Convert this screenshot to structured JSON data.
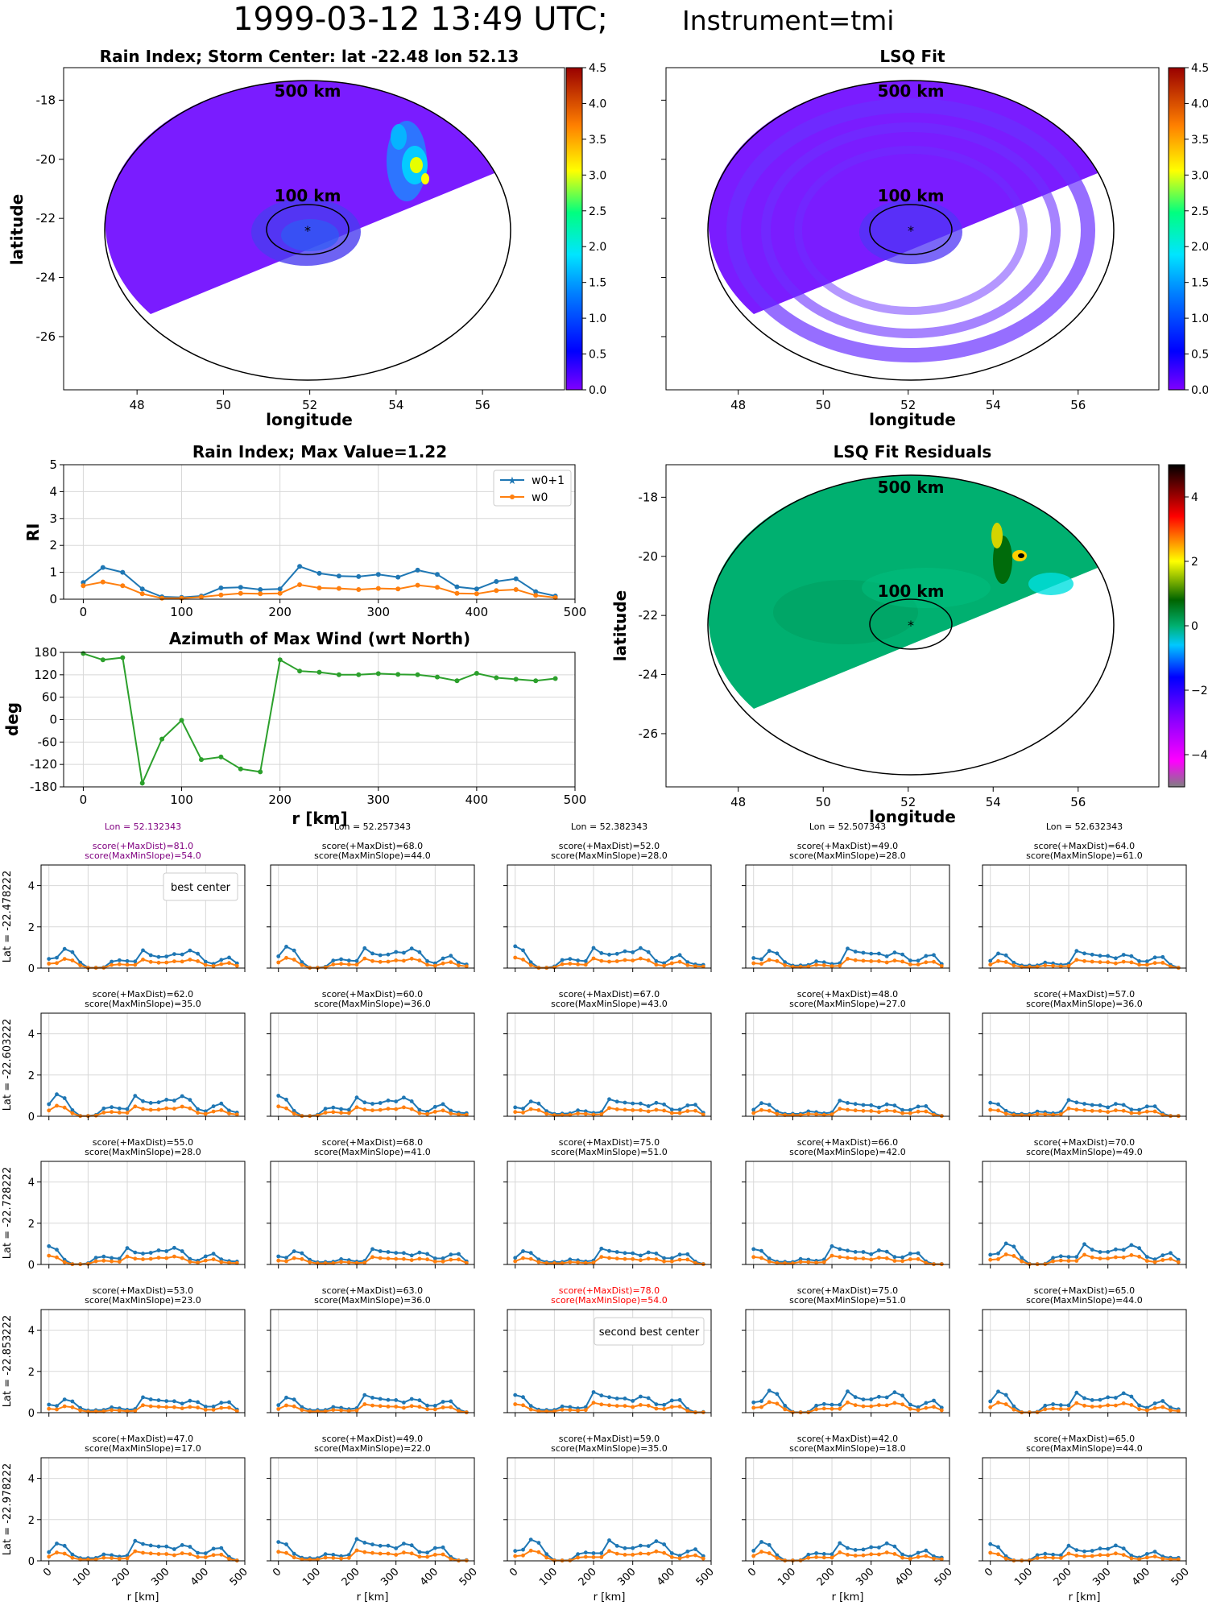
{
  "figure": {
    "title_main": "1999-03-12 13:49 UTC;",
    "title_instrument": "Instrument=tmi"
  },
  "chart_data": [
    {
      "type": "heatmap",
      "title": "Rain Index; Storm Center: lat -22.48 lon 52.13",
      "xlabel": "longitude",
      "ylabel": "latitude",
      "xlim": [
        46.3,
        57.9
      ],
      "ylim": [
        -27.8,
        -16.9
      ],
      "xticks": [
        "48",
        "50",
        "52",
        "54",
        "56"
      ],
      "yticks": [
        "-18",
        "-20",
        "-22",
        "-24",
        "-26"
      ],
      "ring_labels": [
        "500 km",
        "100 km"
      ],
      "storm_center": {
        "lon": 52.13,
        "lat": -22.48
      },
      "colorbar": {
        "min": 0,
        "max": 4.5,
        "ticks": [
          "0.0",
          "0.5",
          "1.0",
          "1.5",
          "2.0",
          "2.5",
          "3.0",
          "3.5",
          "4.0",
          "4.5"
        ],
        "colormap": "jet-like"
      }
    },
    {
      "type": "heatmap",
      "title": "LSQ Fit",
      "xlabel": "longitude",
      "xlim": [
        46.3,
        57.9
      ],
      "ylim": [
        -27.8,
        -16.9
      ],
      "xticks": [
        "48",
        "50",
        "52",
        "54",
        "56"
      ],
      "ring_labels": [
        "500 km",
        "100 km"
      ],
      "colorbar": {
        "min": 0,
        "max": 4.5,
        "ticks": [
          "0.0",
          "0.5",
          "1.0",
          "1.5",
          "2.0",
          "2.5",
          "3.0",
          "3.5",
          "4.0",
          "4.5"
        ]
      }
    },
    {
      "type": "line",
      "title": "Rain Index; Max Value=1.22",
      "ylabel": "RI",
      "xlim": [
        -20,
        500
      ],
      "ylim": [
        0,
        5
      ],
      "xticks": [
        "0",
        "100",
        "200",
        "300",
        "400",
        "500"
      ],
      "yticks": [
        "0",
        "1",
        "2",
        "3",
        "4",
        "5"
      ],
      "x": [
        0,
        20,
        40,
        60,
        80,
        100,
        120,
        140,
        160,
        180,
        200,
        220,
        240,
        260,
        280,
        300,
        320,
        340,
        360,
        380,
        400,
        420,
        440,
        460,
        480
      ],
      "series": [
        {
          "name": "w0+1",
          "color": "#1f77b4",
          "marker": "star",
          "values": [
            0.62,
            1.18,
            1.0,
            0.38,
            0.09,
            0.07,
            0.12,
            0.42,
            0.44,
            0.36,
            0.38,
            1.22,
            0.96,
            0.86,
            0.84,
            0.92,
            0.82,
            1.08,
            0.92,
            0.46,
            0.38,
            0.66,
            0.76,
            0.28,
            0.12
          ]
        },
        {
          "name": "w0",
          "color": "#ff7f0e",
          "marker": "dot",
          "values": [
            0.5,
            0.64,
            0.5,
            0.2,
            0.04,
            0.04,
            0.08,
            0.16,
            0.22,
            0.2,
            0.22,
            0.54,
            0.42,
            0.4,
            0.36,
            0.4,
            0.38,
            0.52,
            0.44,
            0.22,
            0.2,
            0.32,
            0.36,
            0.14,
            0.06
          ]
        }
      ]
    },
    {
      "type": "line",
      "title": "Azimuth of Max Wind (wrt North)",
      "xlabel": "r [km]",
      "ylabel": "deg",
      "xlim": [
        -20,
        500
      ],
      "ylim": [
        -180,
        180
      ],
      "xticks": [
        "0",
        "100",
        "200",
        "300",
        "400",
        "500"
      ],
      "yticks": [
        "180",
        "120",
        "60",
        "0",
        "-60",
        "-120",
        "-180"
      ],
      "x": [
        0,
        20,
        40,
        60,
        80,
        100,
        120,
        140,
        160,
        180,
        200,
        220,
        240,
        260,
        280,
        300,
        320,
        340,
        360,
        380,
        400,
        420,
        440,
        460,
        480
      ],
      "series": [
        {
          "color": "#2ca02c",
          "values": [
            177,
            160,
            166,
            -170,
            -52,
            -2,
            -107,
            -100,
            -132,
            -140,
            160,
            130,
            127,
            120,
            120,
            123,
            121,
            120,
            114,
            104,
            124,
            112,
            108,
            104,
            110
          ]
        }
      ]
    },
    {
      "type": "heatmap",
      "title": "LSQ Fit Residuals",
      "xlabel": "longitude",
      "ylabel": "latitude",
      "xlim": [
        46.3,
        57.9
      ],
      "ylim": [
        -27.8,
        -16.9
      ],
      "xticks": [
        "48",
        "50",
        "52",
        "54",
        "56"
      ],
      "yticks": [
        "-18",
        "-20",
        "-22",
        "-24",
        "-26"
      ],
      "ring_labels": [
        "500 km",
        "100 km"
      ],
      "colorbar": {
        "min": -5,
        "max": 5,
        "ticks": [
          "4",
          "2",
          "0",
          "−2",
          "−4"
        ]
      }
    },
    {
      "type": "line",
      "grid_title": "candidate center scan",
      "xlabel": "r [km]",
      "ylim": [
        0,
        5
      ],
      "xlim": [
        -20,
        500
      ],
      "xticks": [
        "0",
        "100",
        "200",
        "300",
        "400",
        "500"
      ],
      "yticks": [
        "0",
        "2",
        "4"
      ],
      "cols_lon": [
        "Lon = 52.132343",
        "Lon = 52.257343",
        "Lon = 52.382343",
        "Lon = 52.507343",
        "Lon = 52.632343"
      ],
      "rows_lat": [
        "Lat = -22.478222",
        "Lat = -22.603222",
        "Lat = -22.728222",
        "Lat = -22.853222",
        "Lat = -22.978222"
      ],
      "scores": [
        [
          [
            "score(+MaxDist)=81.0",
            "score(MaxMinSlope)=54.0"
          ],
          [
            "score(+MaxDist)=68.0",
            "score(MaxMinSlope)=44.0"
          ],
          [
            "score(+MaxDist)=52.0",
            "score(MaxMinSlope)=28.0"
          ],
          [
            "score(+MaxDist)=49.0",
            "score(MaxMinSlope)=28.0"
          ],
          [
            "score(+MaxDist)=64.0",
            "score(MaxMinSlope)=61.0"
          ]
        ],
        [
          [
            "score(+MaxDist)=62.0",
            "score(MaxMinSlope)=35.0"
          ],
          [
            "score(+MaxDist)=60.0",
            "score(MaxMinSlope)=36.0"
          ],
          [
            "score(+MaxDist)=67.0",
            "score(MaxMinSlope)=43.0"
          ],
          [
            "score(+MaxDist)=48.0",
            "score(MaxMinSlope)=27.0"
          ],
          [
            "score(+MaxDist)=57.0",
            "score(MaxMinSlope)=36.0"
          ]
        ],
        [
          [
            "score(+MaxDist)=55.0",
            "score(MaxMinSlope)=28.0"
          ],
          [
            "score(+MaxDist)=68.0",
            "score(MaxMinSlope)=41.0"
          ],
          [
            "score(+MaxDist)=75.0",
            "score(MaxMinSlope)=51.0"
          ],
          [
            "score(+MaxDist)=66.0",
            "score(MaxMinSlope)=42.0"
          ],
          [
            "score(+MaxDist)=70.0",
            "score(MaxMinSlope)=49.0"
          ]
        ],
        [
          [
            "score(+MaxDist)=53.0",
            "score(MaxMinSlope)=23.0"
          ],
          [
            "score(+MaxDist)=63.0",
            "score(MaxMinSlope)=36.0"
          ],
          [
            "score(+MaxDist)=78.0",
            "score(MaxMinSlope)=54.0"
          ],
          [
            "score(+MaxDist)=75.0",
            "score(MaxMinSlope)=51.0"
          ],
          [
            "score(+MaxDist)=65.0",
            "score(MaxMinSlope)=44.0"
          ]
        ],
        [
          [
            "score(+MaxDist)=47.0",
            "score(MaxMinSlope)=17.0"
          ],
          [
            "score(+MaxDist)=49.0",
            "score(MaxMinSlope)=22.0"
          ],
          [
            "score(+MaxDist)=59.0",
            "score(MaxMinSlope)=35.0"
          ],
          [
            "score(+MaxDist)=42.0",
            "score(MaxMinSlope)=18.0"
          ],
          [
            "score(+MaxDist)=65.0",
            "score(MaxMinSlope)=44.0"
          ]
        ]
      ],
      "best_label": "best center",
      "second_label": "second best center",
      "best_color": "#800080",
      "second_color": "#ff0000",
      "x": [
        0,
        20,
        40,
        60,
        80,
        100,
        120,
        140,
        160,
        180,
        200,
        220,
        240,
        260,
        280,
        300,
        320,
        340,
        360,
        380,
        400,
        420,
        440,
        460,
        480
      ],
      "base_w1": [
        0.62,
        1.18,
        1.0,
        0.38,
        0.09,
        0.07,
        0.12,
        0.42,
        0.44,
        0.36,
        0.38,
        1.22,
        0.96,
        0.86,
        0.84,
        0.92,
        0.82,
        1.08,
        0.92,
        0.46,
        0.38,
        0.66,
        0.76,
        0.28,
        0.12
      ],
      "base_w0": [
        0.5,
        0.64,
        0.5,
        0.2,
        0.04,
        0.04,
        0.08,
        0.16,
        0.22,
        0.2,
        0.22,
        0.54,
        0.42,
        0.4,
        0.36,
        0.4,
        0.38,
        0.52,
        0.44,
        0.22,
        0.2,
        0.32,
        0.36,
        0.14,
        0.06
      ]
    }
  ]
}
